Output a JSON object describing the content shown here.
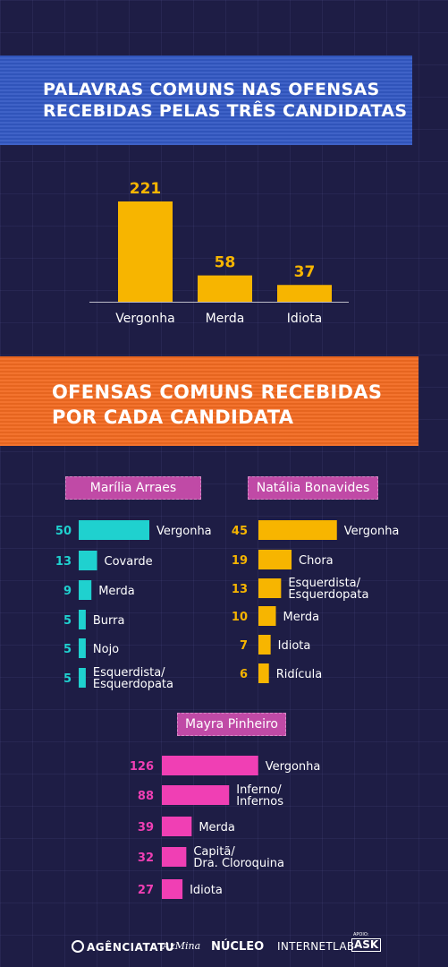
{
  "banner1": {
    "line1": "PALAVRAS COMUNS NAS OFENSAS",
    "line2": "RECEBIDAS PELAS TRÊS CANDIDATAS"
  },
  "banner2": {
    "line1": "OFENSAS COMUNS RECEBIDAS",
    "line2": "POR CADA CANDIDATA"
  },
  "colors": {
    "background": "#1e1d45",
    "blue_banner": "#3358c4",
    "orange_banner": "#f26a21",
    "yellow": "#f7b500",
    "cyan": "#1fd1cf",
    "pink": "#f03fb4",
    "tag_purple": "#c04aa6"
  },
  "chart_data": [
    {
      "type": "bar",
      "title": "PALAVRAS COMUNS NAS OFENSAS RECEBIDAS PELAS TRÊS CANDIDATAS",
      "categories": [
        "Vergonha",
        "Merda",
        "Idiota"
      ],
      "values": [
        221,
        58,
        37
      ],
      "orientation": "vertical",
      "color": "#f7b500"
    },
    {
      "type": "bar",
      "title": "Marília Arraes",
      "orientation": "horizontal",
      "color": "#1fd1cf",
      "categories": [
        "Vergonha",
        "Covarde",
        "Merda",
        "Burra",
        "Nojo",
        "Esquerdista/\nEsquerdopata"
      ],
      "values": [
        50,
        13,
        9,
        5,
        5,
        5
      ]
    },
    {
      "type": "bar",
      "title": "Natália Bonavides",
      "orientation": "horizontal",
      "color": "#f7b500",
      "categories": [
        "Vergonha",
        "Chora",
        "Esquerdista/\nEsquerdopata",
        "Merda",
        "Idiota",
        "Ridícula"
      ],
      "values": [
        45,
        19,
        13,
        10,
        7,
        6
      ]
    },
    {
      "type": "bar",
      "title": "Mayra Pinheiro",
      "orientation": "horizontal",
      "color": "#f03fb4",
      "categories": [
        "Vergonha",
        "Inferno/\nInfernos",
        "Merda",
        "Capitã/\nDra. Cloroquina",
        "Idiota"
      ],
      "values": [
        126,
        88,
        39,
        32,
        27
      ]
    }
  ],
  "footer": {
    "tatu": "AGÊNCIATATU",
    "azmina": "AzMina",
    "nucleo": "NÚCLEO",
    "internetlab": "INTERNETLAB",
    "apoio": "APOIO:",
    "ask": "ASK"
  }
}
